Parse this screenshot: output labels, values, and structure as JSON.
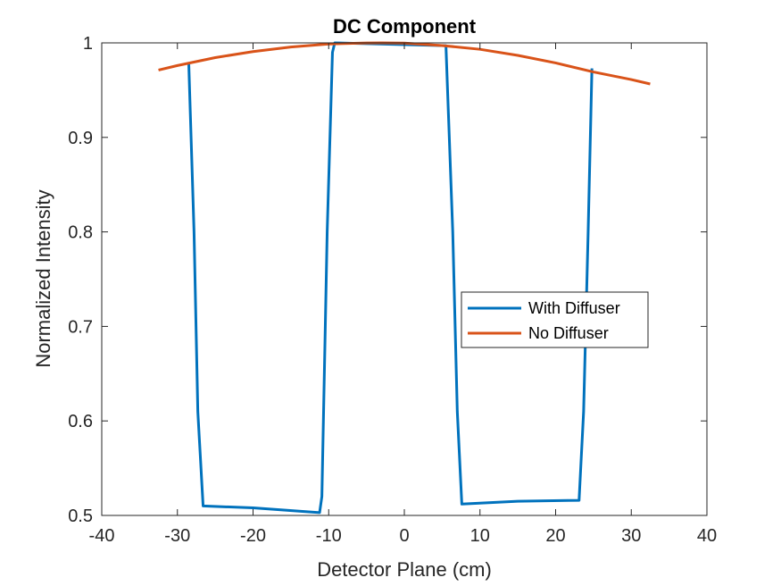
{
  "chart_data": {
    "type": "line",
    "title": "DC Component",
    "xlabel": "Detector Plane (cm)",
    "ylabel": "Normalized Intensity",
    "xlim": [
      -40,
      40
    ],
    "ylim": [
      0.5,
      1
    ],
    "xticks": [
      -40,
      -30,
      -20,
      -10,
      0,
      10,
      20,
      30,
      40
    ],
    "xtick_labels": [
      "-40",
      "-30",
      "-20",
      "-10",
      "0",
      "10",
      "20",
      "30",
      "40"
    ],
    "yticks": [
      0.5,
      0.6,
      0.7,
      0.8,
      0.9,
      1
    ],
    "ytick_labels": [
      "0.5",
      "0.6",
      "0.7",
      "0.8",
      "0.9",
      "1"
    ],
    "grid": false,
    "legend_position": "center-right",
    "series": [
      {
        "name": "With Diffuser",
        "color": "#0072BD",
        "x": [
          -28.5,
          -27.8,
          -27.3,
          -26.6,
          -20,
          -11.2,
          -10.9,
          -10.2,
          -9.5,
          -9.2,
          5.5,
          6.4,
          7.0,
          7.6,
          15,
          23.1,
          23.7,
          24.3,
          24.8
        ],
        "y": [
          0.979,
          0.8,
          0.61,
          0.51,
          0.508,
          0.503,
          0.52,
          0.8,
          0.99,
          1.0,
          0.997,
          0.8,
          0.61,
          0.512,
          0.515,
          0.516,
          0.61,
          0.8,
          0.973
        ]
      },
      {
        "name": "No Diffuser",
        "color": "#D95319",
        "x": [
          -32.5,
          -30,
          -25,
          -20,
          -15,
          -10,
          -5,
          -3,
          0,
          5,
          10,
          15,
          20,
          25,
          30,
          32.5
        ],
        "y": [
          0.9712,
          0.976,
          0.9844,
          0.9908,
          0.9956,
          0.9988,
          0.99985,
          1.0,
          0.9998,
          0.9972,
          0.9932,
          0.9868,
          0.9788,
          0.9692,
          0.9612,
          0.9565
        ]
      }
    ]
  }
}
